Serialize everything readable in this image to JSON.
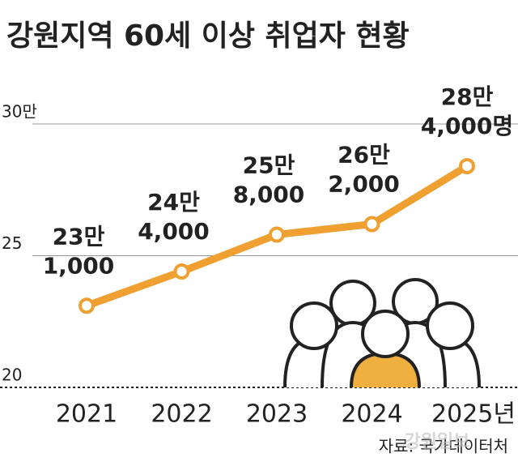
{
  "chart_data": {
    "type": "line",
    "title": "강원지역 60세 이상 취업자 현황",
    "categories": [
      "2021",
      "2022",
      "2023",
      "2024",
      "2025년"
    ],
    "series": [
      {
        "name": "취업자",
        "color": "#f0a030",
        "values": [
          23.1,
          24.4,
          25.8,
          26.2,
          28.4
        ]
      }
    ],
    "value_labels": [
      [
        "23만",
        "1,000"
      ],
      [
        "24만",
        "4,000"
      ],
      [
        "25만",
        "8,000"
      ],
      [
        "26만",
        "2,000"
      ],
      [
        "28만",
        "4,000명"
      ]
    ],
    "ylim": [
      20,
      30
    ],
    "yticks": [
      20,
      25,
      {
        "value": 30,
        "label": "30만"
      }
    ],
    "grid": true,
    "source": "자료: 국가데이터처",
    "watermark": "강원일보"
  }
}
